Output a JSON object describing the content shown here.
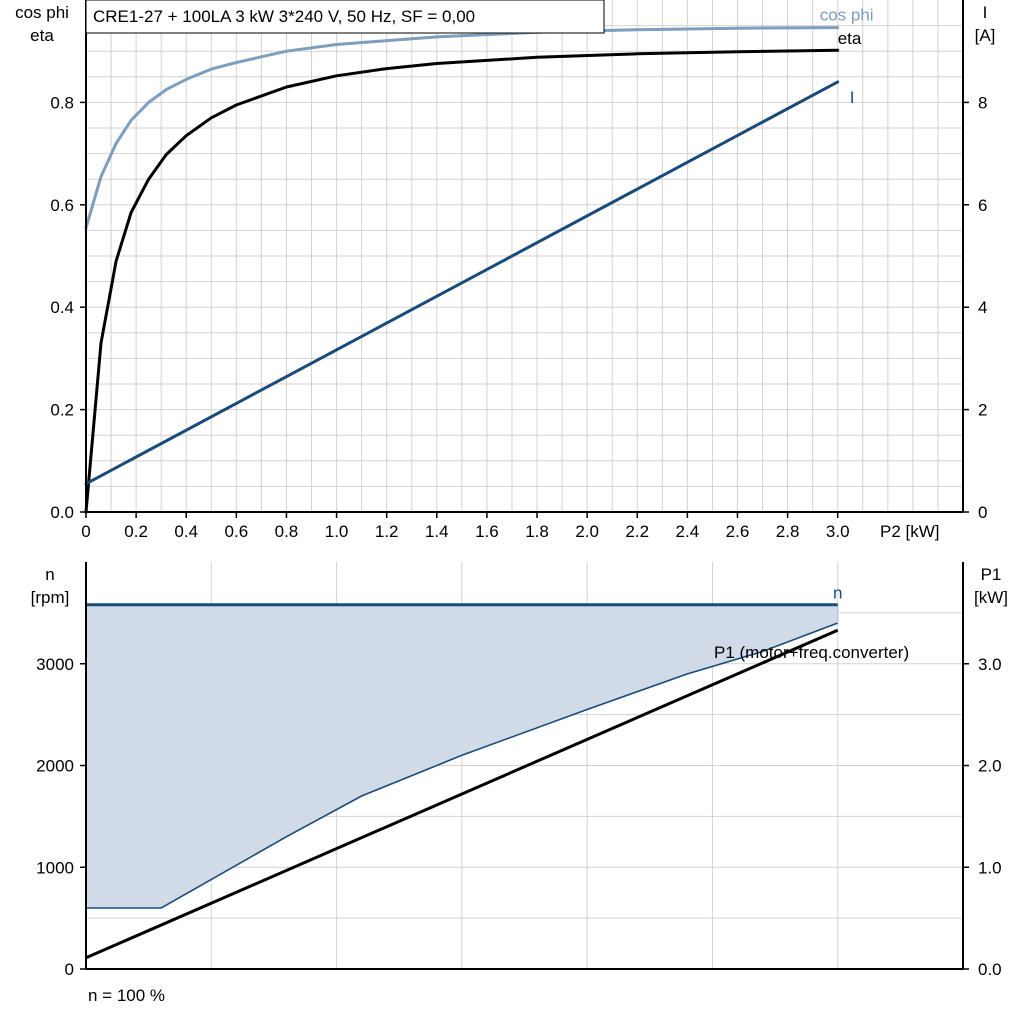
{
  "title": "CRE1-27 + 100LA   3 kW   3*240 V, 50 Hz, SF = 0,00",
  "footer": "n = 100 %",
  "colors": {
    "cosphi": "#7d9ebd",
    "eta": "#000000",
    "current": "#1a4a7a",
    "speed": "#1a4a7a",
    "fill": "#d0dbe7",
    "p1": "#000000",
    "grid": "#d2d2d2"
  },
  "chart_data": [
    {
      "type": "line",
      "xlabel": "P2 [kW]",
      "ylabel_left": [
        "cos phi",
        "eta"
      ],
      "ylabel_right": [
        "I",
        "[A]"
      ],
      "xlim": [
        0,
        3.5
      ],
      "ylim_left": [
        0,
        1.0
      ],
      "ylim_right": [
        0,
        10
      ],
      "xticks": [
        "0",
        "0.2",
        "0.4",
        "0.6",
        "0.8",
        "1.0",
        "1.2",
        "1.4",
        "1.6",
        "1.8",
        "2.0",
        "2.2",
        "2.4",
        "2.6",
        "2.8",
        "3.0"
      ],
      "yticks_left": [
        "0.0",
        "0.2",
        "0.4",
        "0.6",
        "0.8"
      ],
      "yticks_right": [
        "0",
        "2",
        "4",
        "6",
        "8"
      ],
      "grid": true,
      "series": [
        {
          "name": "cos phi",
          "axis": "left",
          "x": [
            0,
            0.06,
            0.12,
            0.18,
            0.25,
            0.32,
            0.4,
            0.5,
            0.6,
            0.8,
            1.0,
            1.4,
            1.8,
            2.2,
            2.6,
            3.0
          ],
          "y": [
            0.555,
            0.655,
            0.72,
            0.765,
            0.8,
            0.825,
            0.845,
            0.865,
            0.878,
            0.9,
            0.913,
            0.928,
            0.937,
            0.942,
            0.945,
            0.946
          ]
        },
        {
          "name": "eta",
          "axis": "left",
          "x": [
            0,
            0.06,
            0.12,
            0.18,
            0.25,
            0.32,
            0.4,
            0.5,
            0.6,
            0.8,
            1.0,
            1.2,
            1.4,
            1.8,
            2.2,
            2.6,
            3.0
          ],
          "y": [
            0.0,
            0.33,
            0.49,
            0.585,
            0.65,
            0.698,
            0.735,
            0.77,
            0.795,
            0.83,
            0.852,
            0.866,
            0.876,
            0.888,
            0.895,
            0.899,
            0.902
          ]
        },
        {
          "name": "I",
          "axis": "right",
          "x": [
            0,
            3.0
          ],
          "y": [
            0.55,
            8.4
          ]
        }
      ]
    },
    {
      "type": "line",
      "xlabel": "",
      "ylabel_left": [
        "n",
        "[rpm]"
      ],
      "ylabel_right": [
        "P1",
        "[kW]"
      ],
      "xlim": [
        0,
        3.5
      ],
      "ylim_left": [
        0,
        4000
      ],
      "ylim_right": [
        0,
        4.0
      ],
      "yticks_left": [
        "0",
        "1000",
        "2000",
        "3000"
      ],
      "yticks_right": [
        "0.0",
        "1.0",
        "2.0",
        "3.0"
      ],
      "grid": true,
      "series": [
        {
          "name": "n",
          "axis": "left",
          "x": [
            0,
            3.0
          ],
          "y": [
            3580,
            3580
          ]
        },
        {
          "name": "",
          "axis": "left",
          "role": "operating range lower bound",
          "x": [
            0,
            0.3,
            0.8,
            1.1,
            1.5,
            2.0,
            2.4,
            2.7,
            3.0
          ],
          "y": [
            600,
            600,
            1300,
            1700,
            2100,
            2550,
            2900,
            3120,
            3400
          ]
        },
        {
          "name": "P1 (motor+freq.converter)",
          "axis": "right",
          "x": [
            0,
            3.0
          ],
          "y": [
            0.11,
            3.33
          ]
        }
      ]
    }
  ]
}
